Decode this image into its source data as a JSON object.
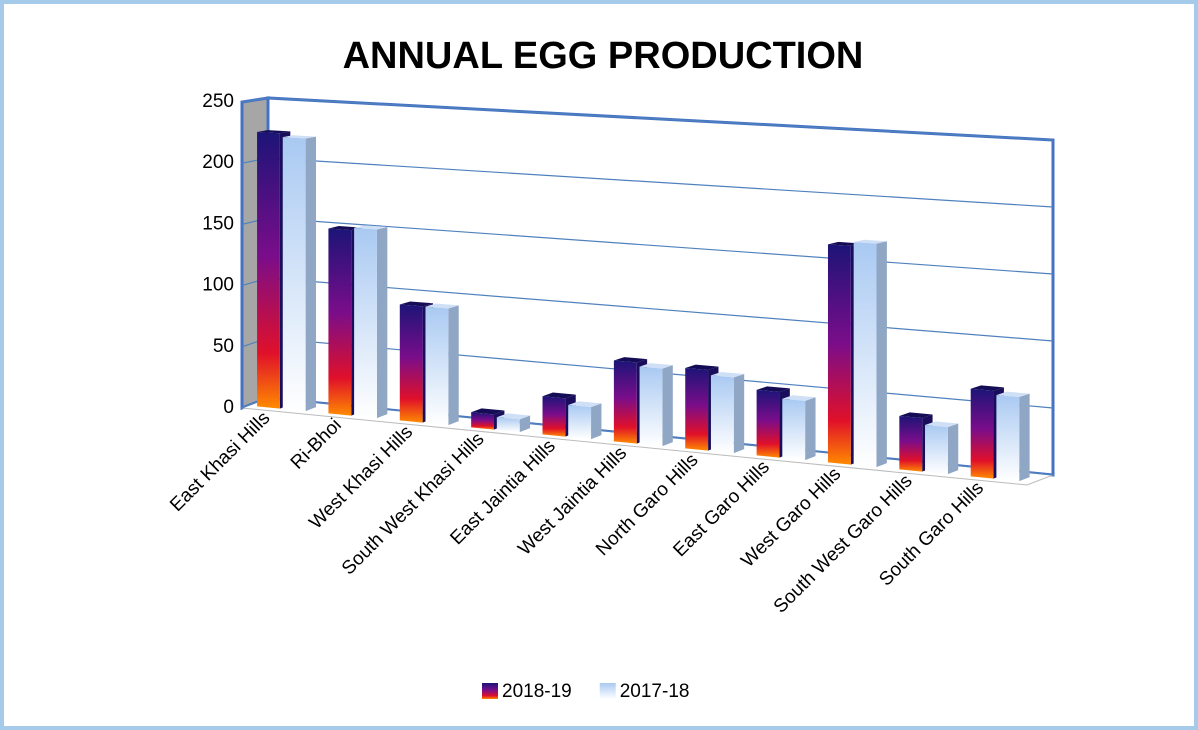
{
  "chart_data": {
    "type": "bar3d",
    "title": "ANNUAL EGG PRODUCTION",
    "categories": [
      "East Khasi Hills",
      "Ri-Bhoi",
      "West Khasi Hills",
      "South West Khasi Hills",
      "East Jaintia Hills",
      "West Jaintia Hills",
      "North Garo Hills",
      "East Garo Hills",
      "West Garo Hills",
      "South West Garo Hills",
      "South Garo Hills"
    ],
    "series": [
      {
        "name": "2018-19",
        "color": "#1c1477",
        "values": [
          225,
          150,
          93,
          12,
          30,
          63,
          62,
          50,
          165,
          40,
          65
        ]
      },
      {
        "name": "2017-18",
        "color": "#a9c9f2",
        "values": [
          222,
          152,
          93,
          10,
          25,
          60,
          58,
          45,
          168,
          35,
          62
        ]
      }
    ],
    "ylim": [
      0,
      250
    ],
    "yticks": [
      0,
      50,
      100,
      150,
      200,
      250
    ],
    "grid": true,
    "legend": "bottom"
  }
}
